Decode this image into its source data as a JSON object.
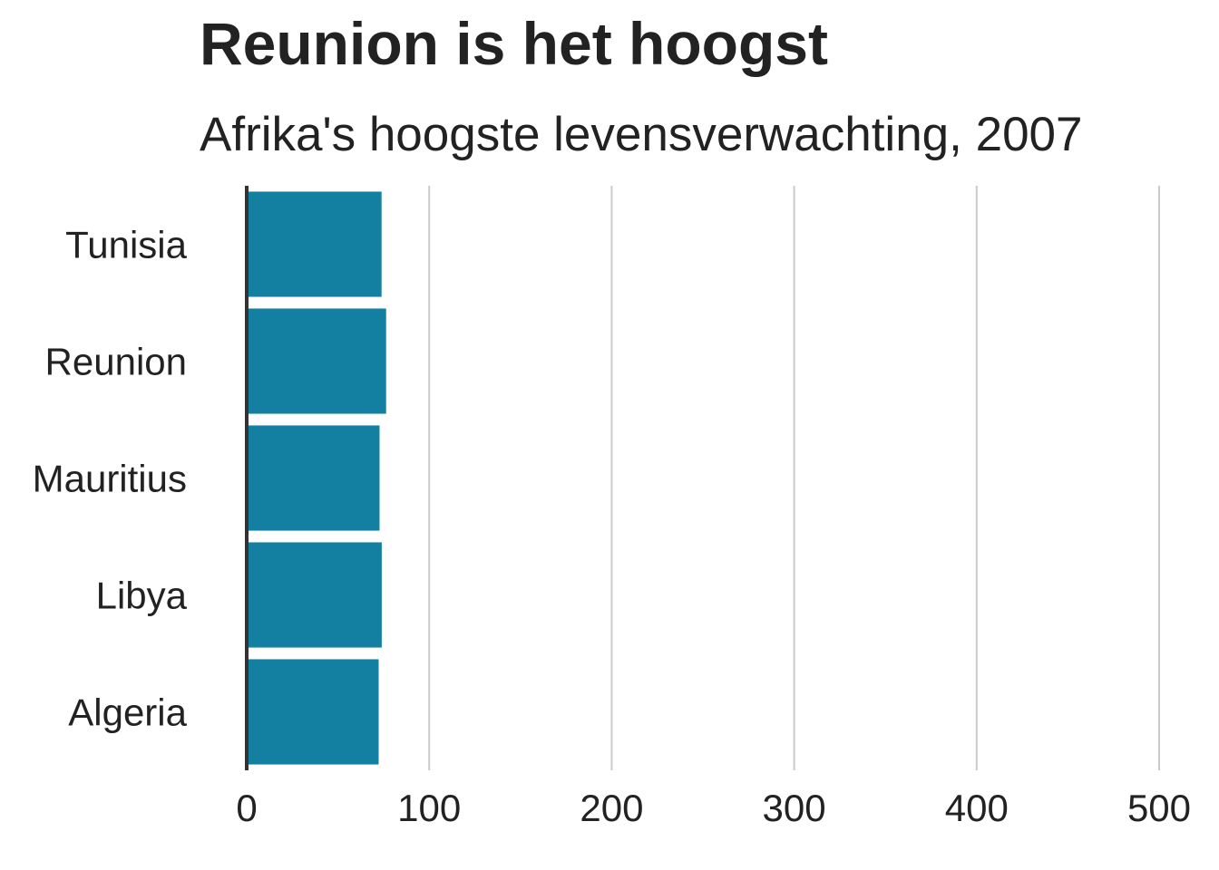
{
  "chart_data": {
    "type": "bar",
    "orientation": "horizontal",
    "title": "Reunion is het hoogst",
    "subtitle": "Afrika's hoogste levensverwachting, 2007",
    "categories": [
      "Tunisia",
      "Reunion",
      "Mauritius",
      "Libya",
      "Algeria"
    ],
    "values": [
      73.9,
      76.4,
      72.8,
      74.0,
      72.3
    ],
    "xlim": [
      0,
      500
    ],
    "xticks": [
      0,
      100,
      200,
      300,
      400,
      500
    ],
    "xlabel": "",
    "ylabel": "",
    "grid": "vertical",
    "legend": "none",
    "bar_color": "#1380A1",
    "grid_color": "#cbcbcb",
    "axis_color": "#333333"
  }
}
